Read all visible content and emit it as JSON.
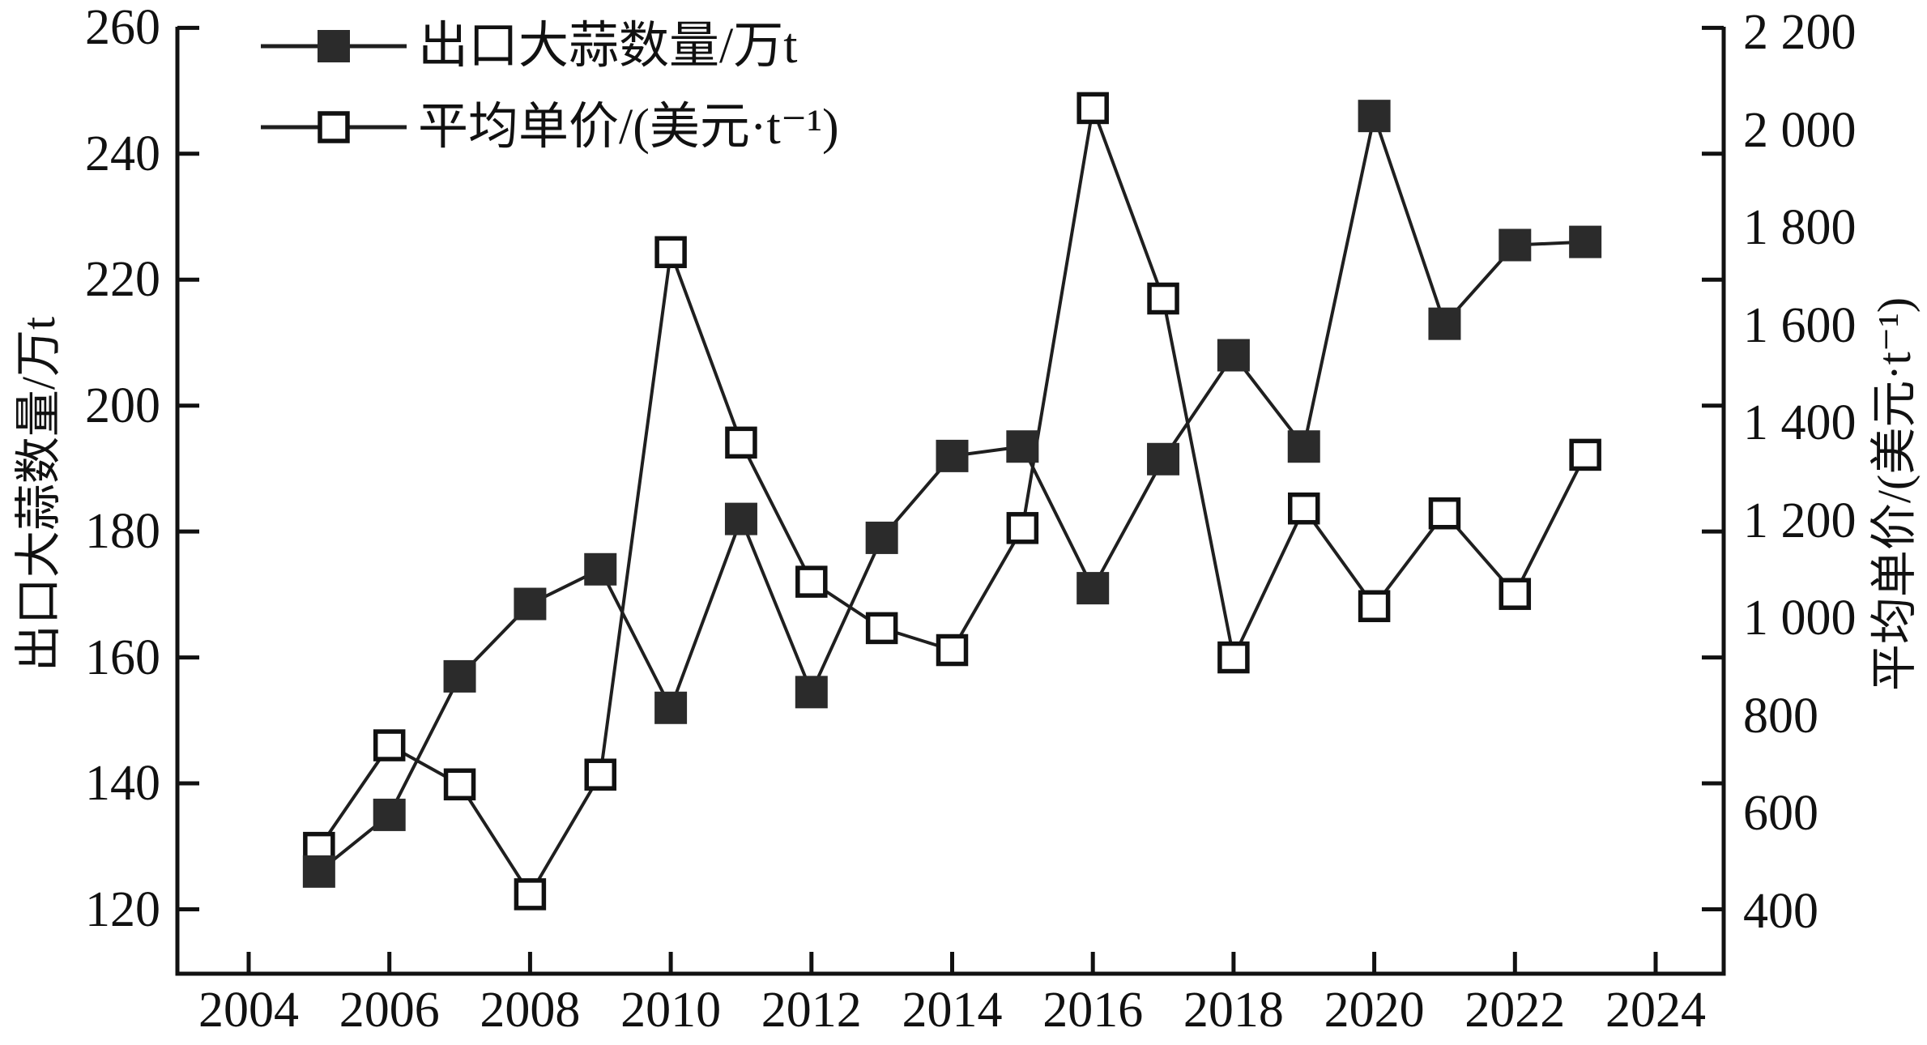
{
  "chart_data": {
    "type": "line",
    "title": "",
    "x": [
      2005,
      2006,
      2007,
      2008,
      2009,
      2010,
      2011,
      2012,
      2013,
      2014,
      2015,
      2016,
      2017,
      2018,
      2019,
      2020,
      2021,
      2022,
      2023
    ],
    "series": [
      {
        "name": "出口大蒜数量/万t",
        "axis": "left",
        "marker": "filled-square",
        "values": [
          126,
          135,
          157,
          168.5,
          174,
          152,
          182,
          154.5,
          179,
          192,
          193.5,
          171,
          191.5,
          208,
          193.5,
          246,
          213,
          225.5,
          226
        ]
      },
      {
        "name": "平均单价/(美元·t⁻¹)",
        "axis": "right",
        "marker": "open-square",
        "values": [
          530,
          740,
          660,
          435,
          680,
          1750,
          1360,
          1075,
          980,
          935,
          1185,
          2045,
          1655,
          920,
          1225,
          1025,
          1215,
          1050,
          1335
        ]
      }
    ],
    "left_axis": {
      "label": "出口大蒜数量/万t",
      "ticks": [
        260,
        240,
        220,
        200,
        180,
        160,
        140,
        120
      ],
      "range": [
        110,
        260
      ]
    },
    "right_axis": {
      "label": "平均单价/(美元·t⁻¹)",
      "tick_labels": [
        "2 200",
        "2 000",
        "1 800",
        "1 600",
        "1 400",
        "1 200",
        "1 000",
        "800",
        "600",
        "400"
      ],
      "range": [
        400,
        2200
      ]
    },
    "x_axis": {
      "tick_labels": [
        "2004",
        "2006",
        "2008",
        "2010",
        "2012",
        "2014",
        "2016",
        "2018",
        "2020",
        "2022",
        "2024"
      ],
      "range": [
        2003,
        2025
      ]
    },
    "legend_position": "top-left",
    "grid": "off",
    "colors": {
      "line": "#1f1f1f",
      "marker_fill": "#2b2b2b",
      "marker_open_fill": "#ffffff",
      "axis": "#111111",
      "background": "#ffffff"
    }
  }
}
